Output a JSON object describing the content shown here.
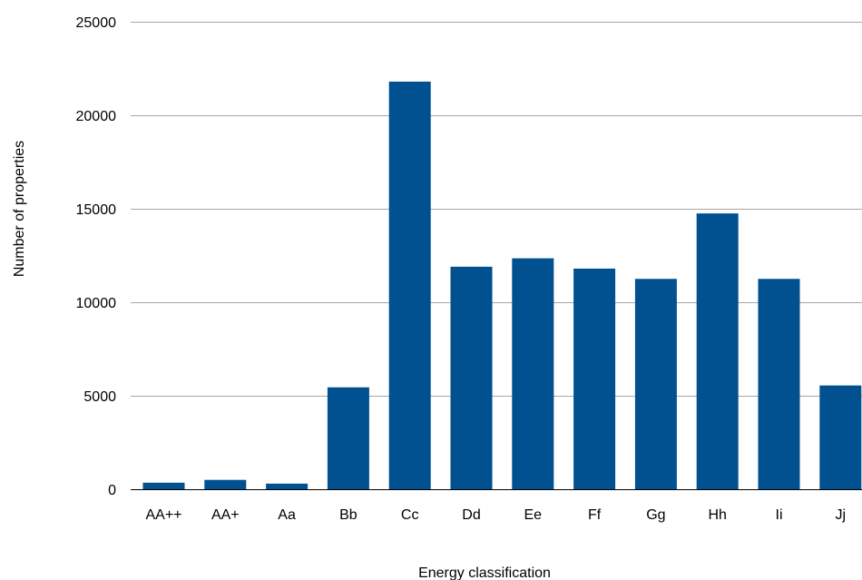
{
  "chart_data": {
    "type": "bar",
    "title": "",
    "xlabel": "Energy classification",
    "ylabel": "Number of properties",
    "categories": [
      "AA++",
      "AA+",
      "Aa",
      "Bb",
      "Cc",
      "Dd",
      "Ee",
      "Ff",
      "Gg",
      "Hh",
      "Ii",
      "Jj"
    ],
    "values": [
      350,
      500,
      300,
      5450,
      21800,
      11900,
      12350,
      11800,
      11250,
      14750,
      11250,
      5550
    ],
    "ylim": [
      0,
      25000
    ],
    "yticks": [
      0,
      5000,
      10000,
      15000,
      20000,
      25000
    ],
    "grid": true,
    "legend": "none",
    "colors": {
      "bar": "#01508f",
      "grid": "#a6a6a6",
      "text": "#000000"
    }
  }
}
